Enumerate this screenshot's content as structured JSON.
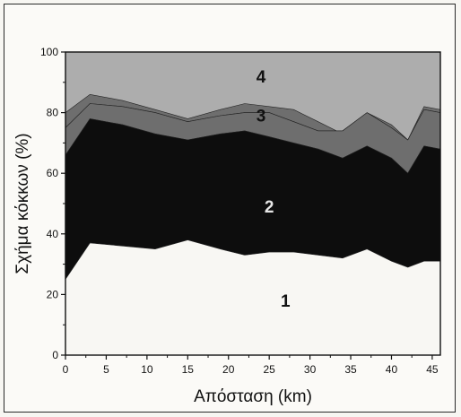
{
  "chart_data": {
    "type": "area",
    "stacked": true,
    "title": "",
    "xlabel": "Απόσταση (km)",
    "ylabel": "Σχήμα κόκκων (%)",
    "xlim": [
      0,
      46
    ],
    "ylim": [
      0,
      100
    ],
    "xticks": [
      "0",
      "5",
      "10",
      "15",
      "20",
      "25",
      "30",
      "35",
      "40",
      "45"
    ],
    "yticks": [
      "0",
      "20",
      "40",
      "60",
      "80",
      "100"
    ],
    "x": [
      0,
      3,
      7,
      11,
      15,
      19,
      22,
      25,
      28,
      31,
      34,
      37,
      40,
      42,
      44,
      46
    ],
    "series": [
      {
        "name": "1",
        "color": "#f8f7f3",
        "cumulative": [
          25,
          37,
          36,
          35,
          38,
          35,
          33,
          34,
          34,
          33,
          32,
          35,
          31,
          29,
          31,
          31
        ]
      },
      {
        "name": "2",
        "color": "#0d0d0d",
        "cumulative": [
          66,
          78,
          76,
          73,
          71,
          73,
          74,
          72,
          70,
          68,
          65,
          69,
          65,
          60,
          69,
          68
        ]
      },
      {
        "name": "3",
        "color": "#6e6e6e",
        "cumulative": [
          75,
          83,
          82,
          80,
          77,
          79,
          80,
          80,
          77,
          74,
          74,
          80,
          75,
          71,
          81,
          80
        ]
      },
      {
        "name": "4",
        "color": "#adadad",
        "cumulative": [
          80,
          86,
          84,
          81,
          78,
          81,
          83,
          82,
          81,
          77,
          73,
          80,
          76,
          71,
          82,
          81
        ]
      }
    ],
    "top": 100,
    "grid": false,
    "legend": "none"
  }
}
